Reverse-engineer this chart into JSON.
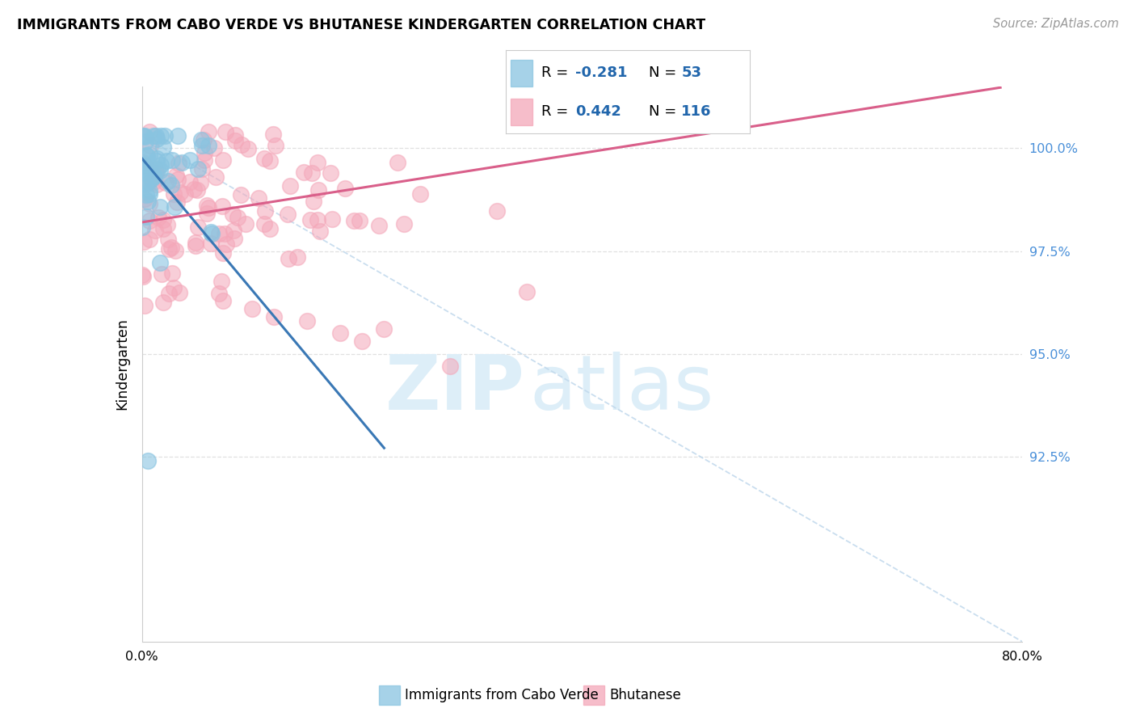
{
  "title": "IMMIGRANTS FROM CABO VERDE VS BHUTANESE KINDERGARTEN CORRELATION CHART",
  "source": "Source: ZipAtlas.com",
  "ylabel": "Kindergarten",
  "ytick_labels": [
    "92.5%",
    "95.0%",
    "97.5%",
    "100.0%"
  ],
  "ytick_values": [
    0.925,
    0.95,
    0.975,
    1.0
  ],
  "right_ytick_labels": [
    "100.0%",
    "97.5%",
    "95.0%",
    "92.5%"
  ],
  "xlim": [
    0.0,
    0.8
  ],
  "ylim": [
    0.88,
    1.015
  ],
  "legend_r_blue": "-0.281",
  "legend_n_blue": "53",
  "legend_r_pink": "0.442",
  "legend_n_pink": "116",
  "blue_color": "#89c4e1",
  "pink_color": "#f4a7b9",
  "blue_line_color": "#3a78b5",
  "pink_line_color": "#d95f8a",
  "dashed_line_color": "#c0d8ec",
  "watermark_zip": "ZIP",
  "watermark_atlas": "atlas",
  "watermark_color": "#ddeef8",
  "grid_color": "#e0e0e0",
  "title_fontsize": 12.5,
  "source_fontsize": 10.5,
  "tick_fontsize": 11.5,
  "legend_fontsize": 13
}
